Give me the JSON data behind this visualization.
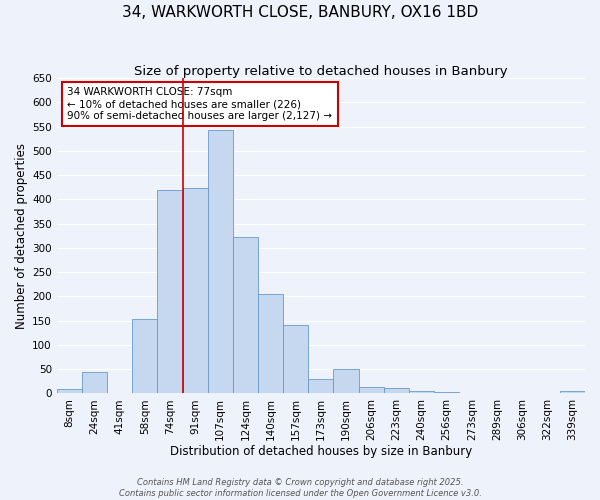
{
  "title": "34, WARKWORTH CLOSE, BANBURY, OX16 1BD",
  "subtitle": "Size of property relative to detached houses in Banbury",
  "xlabel": "Distribution of detached houses by size in Banbury",
  "ylabel": "Number of detached properties",
  "bar_labels": [
    "8sqm",
    "24sqm",
    "41sqm",
    "58sqm",
    "74sqm",
    "91sqm",
    "107sqm",
    "124sqm",
    "140sqm",
    "157sqm",
    "173sqm",
    "190sqm",
    "206sqm",
    "223sqm",
    "240sqm",
    "256sqm",
    "273sqm",
    "289sqm",
    "306sqm",
    "322sqm",
    "339sqm"
  ],
  "bar_values": [
    8,
    43,
    0,
    153,
    420,
    423,
    543,
    322,
    205,
    140,
    30,
    50,
    14,
    11,
    5,
    2,
    0,
    0,
    0,
    0,
    5
  ],
  "bar_color": "#c5d8f0",
  "bar_edge_color": "#6699cc",
  "ylim": [
    0,
    650
  ],
  "yticks": [
    0,
    50,
    100,
    150,
    200,
    250,
    300,
    350,
    400,
    450,
    500,
    550,
    600,
    650
  ],
  "vline_color": "#cc0000",
  "annotation_title": "34 WARKWORTH CLOSE: 77sqm",
  "annotation_line1": "← 10% of detached houses are smaller (226)",
  "annotation_line2": "90% of semi-detached houses are larger (2,127) →",
  "annotation_box_color": "#cc0000",
  "footer_line1": "Contains HM Land Registry data © Crown copyright and database right 2025.",
  "footer_line2": "Contains public sector information licensed under the Open Government Licence v3.0.",
  "background_color": "#eef2fb",
  "grid_color": "#ffffff",
  "title_fontsize": 11,
  "subtitle_fontsize": 9.5,
  "axis_label_fontsize": 8.5,
  "tick_fontsize": 7.5,
  "annotation_fontsize": 7.5,
  "footer_fontsize": 6
}
